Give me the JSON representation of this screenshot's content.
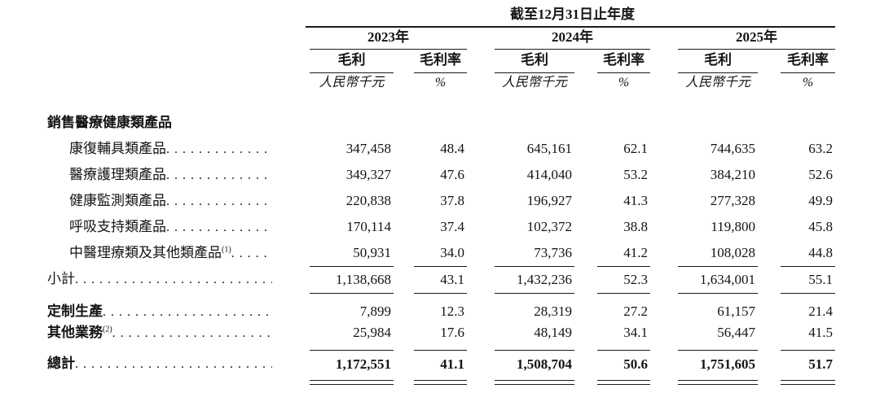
{
  "colors": {
    "background": "#ffffff",
    "text": "#141414",
    "rule": "#1a1a1a"
  },
  "header": {
    "period_title": "截至12月31日止年度",
    "years": [
      "2023年",
      "2024年",
      "2025年"
    ],
    "gp_label": "毛利",
    "margin_label": "毛利率",
    "gp_unit": "人民幣千元",
    "margin_unit": "%"
  },
  "rows": [
    {
      "type": "section",
      "label": "銷售醫療健康類產品",
      "sup": "",
      "values": []
    },
    {
      "type": "product",
      "label": "康復輔具類產品",
      "sup": "",
      "values": [
        "347,458",
        "48.4",
        "645,161",
        "62.1",
        "744,635",
        "63.2"
      ]
    },
    {
      "type": "product",
      "label": "醫療護理類產品",
      "sup": "",
      "values": [
        "349,327",
        "47.6",
        "414,040",
        "53.2",
        "384,210",
        "52.6"
      ]
    },
    {
      "type": "product",
      "label": "健康監測類產品",
      "sup": "",
      "values": [
        "220,838",
        "37.8",
        "196,927",
        "41.3",
        "277,328",
        "49.9"
      ]
    },
    {
      "type": "product",
      "label": "呼吸支持類產品",
      "sup": "",
      "values": [
        "170,114",
        "37.4",
        "102,372",
        "38.8",
        "119,800",
        "45.8"
      ]
    },
    {
      "type": "product",
      "label": "中醫理療類及其他類產品",
      "sup": "(1)",
      "values": [
        "50,931",
        "34.0",
        "73,736",
        "41.2",
        "108,028",
        "44.8"
      ]
    },
    {
      "type": "subtotal",
      "label": "小計",
      "sup": "",
      "values": [
        "1,138,668",
        "43.1",
        "1,432,236",
        "52.3",
        "1,634,001",
        "55.1"
      ]
    },
    {
      "type": "bold",
      "label": "定制生產",
      "sup": "",
      "values": [
        "7,899",
        "12.3",
        "28,319",
        "27.2",
        "61,157",
        "21.4"
      ]
    },
    {
      "type": "bold",
      "label": "其他業務",
      "sup": "(2)",
      "values": [
        "25,984",
        "17.6",
        "48,149",
        "34.1",
        "56,447",
        "41.5"
      ]
    },
    {
      "type": "total",
      "label": "總計",
      "sup": "",
      "values": [
        "1,172,551",
        "41.1",
        "1,508,704",
        "50.6",
        "1,751,605",
        "51.7"
      ]
    }
  ]
}
